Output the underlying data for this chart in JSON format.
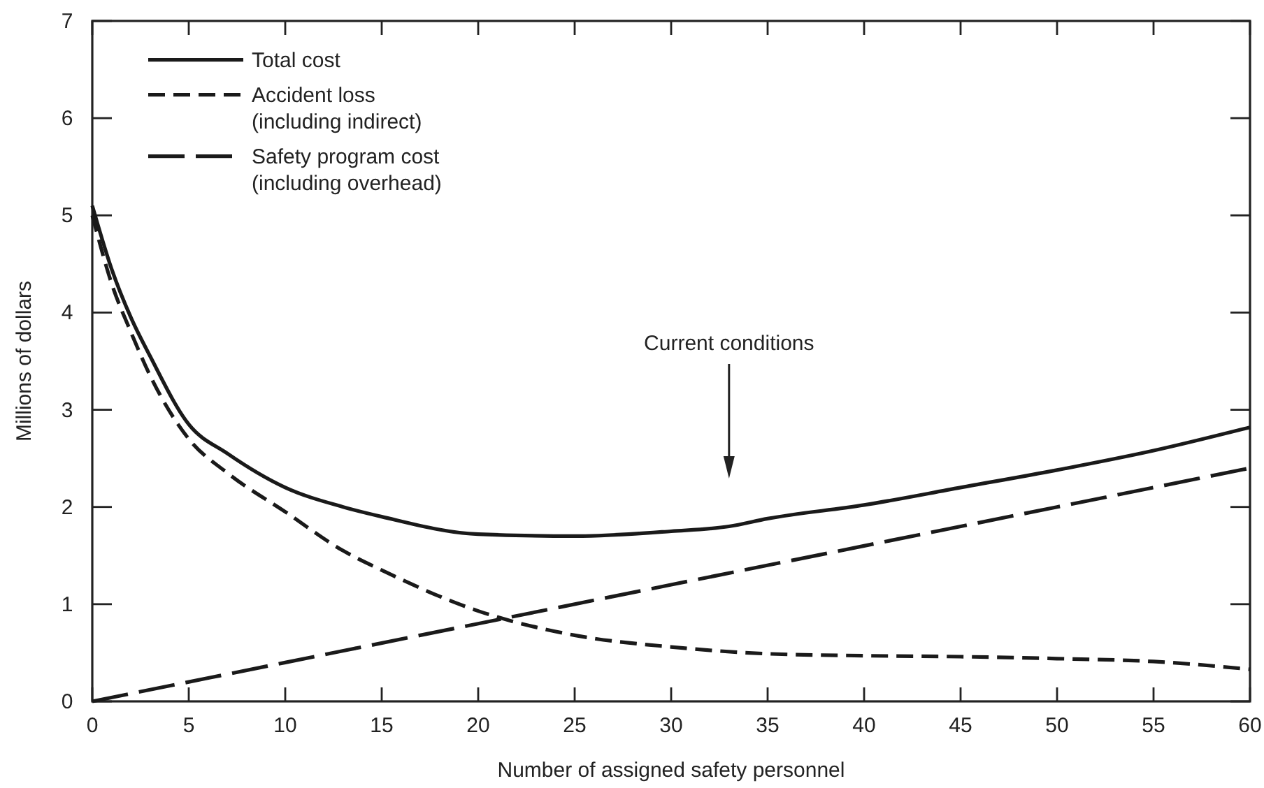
{
  "chart_data": {
    "type": "line",
    "xlabel": "Number of assigned safety personnel",
    "ylabel": "Millions of dollars",
    "xlim": [
      0,
      60
    ],
    "ylim": [
      0,
      7
    ],
    "xticks": [
      0,
      5,
      10,
      15,
      20,
      25,
      30,
      35,
      40,
      45,
      50,
      55,
      60
    ],
    "yticks": [
      0,
      1,
      2,
      3,
      4,
      5,
      6,
      7
    ],
    "legend": "top left",
    "grid": false,
    "marker": "none",
    "annotations": [
      "Current conditions"
    ],
    "series": [
      {
        "name": "Total cost",
        "color": "#1a1a1a",
        "line_style": "solid",
        "x": [
          0,
          1,
          2,
          3,
          5,
          7,
          10,
          13,
          15,
          20,
          25,
          30,
          33,
          35,
          40,
          45,
          50,
          55,
          60
        ],
        "values": [
          5.1,
          4.45,
          3.95,
          3.55,
          2.85,
          2.55,
          2.2,
          2.0,
          1.9,
          1.72,
          1.7,
          1.75,
          1.8,
          1.88,
          2.02,
          2.2,
          2.38,
          2.58,
          2.82
        ]
      },
      {
        "name": "Accident loss\n(including indirect)",
        "color": "#1a1a1a",
        "line_style": "dashed",
        "x": [
          0,
          1,
          2,
          3,
          5,
          7,
          10,
          13,
          15,
          20,
          25,
          30,
          35,
          40,
          45,
          50,
          55,
          60
        ],
        "values": [
          5.0,
          4.3,
          3.8,
          3.35,
          2.7,
          2.35,
          1.95,
          1.55,
          1.35,
          0.93,
          0.68,
          0.56,
          0.49,
          0.47,
          0.46,
          0.44,
          0.41,
          0.33
        ]
      },
      {
        "name": "Safety program cost\n(including overhead)",
        "color": "#1a1a1a",
        "line_style": "longdash",
        "x": [
          0,
          10,
          20,
          30,
          40,
          50,
          60
        ],
        "values": [
          0,
          0.4,
          0.8,
          1.2,
          1.6,
          2.0,
          2.4
        ]
      }
    ]
  }
}
